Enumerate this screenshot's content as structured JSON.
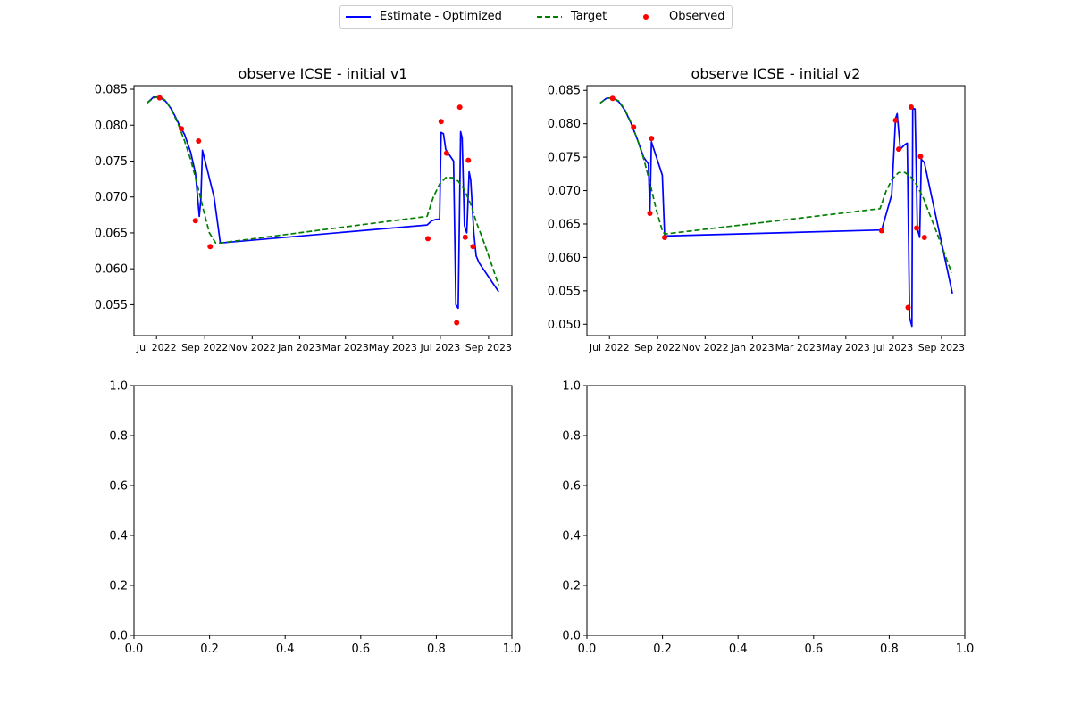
{
  "legend": {
    "items": [
      {
        "label": "Estimate - Optimized",
        "color": "#0000ff",
        "style": "solid"
      },
      {
        "label": "Target",
        "color": "#008000",
        "style": "dashed"
      },
      {
        "label": "Observed",
        "color": "#ff0000",
        "style": "marker"
      }
    ]
  },
  "chart_data": [
    {
      "type": "line",
      "title": "observe ICSE - initial v1",
      "xlabel": "",
      "ylabel": "",
      "x_axis": "date",
      "xlim": [
        "2022-06-02",
        "2023-10-01"
      ],
      "ylim": [
        0.0507,
        0.0855
      ],
      "x_ticks": [
        {
          "date": "2022-07-01",
          "label": "Jul 2022"
        },
        {
          "date": "2022-09-01",
          "label": "Sep 2022"
        },
        {
          "date": "2022-11-01",
          "label": "Nov 2022"
        },
        {
          "date": "2023-01-01",
          "label": "Jan 2023"
        },
        {
          "date": "2023-03-01",
          "label": "Mar 2023"
        },
        {
          "date": "2023-05-01",
          "label": "May 2023"
        },
        {
          "date": "2023-07-01",
          "label": "Jul 2023"
        },
        {
          "date": "2023-09-01",
          "label": "Sep 2023"
        }
      ],
      "y_ticks": [
        "0.055",
        "0.060",
        "0.065",
        "0.070",
        "0.075",
        "0.080",
        "0.085"
      ],
      "series": [
        {
          "name": "Estimate - Optimized",
          "color": "#0000ff",
          "style": "solid",
          "x": [
            "2022-06-19",
            "2022-06-27",
            "2022-07-05",
            "2022-07-13",
            "2022-07-21",
            "2022-07-29",
            "2022-08-06",
            "2022-08-14",
            "2022-08-20",
            "2022-08-25",
            "2022-08-27",
            "2022-08-29",
            "2022-09-13",
            "2022-09-21",
            "2023-06-14",
            "2023-06-20",
            "2023-06-26",
            "2023-06-30",
            "2023-07-02",
            "2023-07-05",
            "2023-07-08",
            "2023-07-18",
            "2023-07-21",
            "2023-07-24",
            "2023-07-27",
            "2023-07-29",
            "2023-08-01",
            "2023-08-04",
            "2023-08-07",
            "2023-08-09",
            "2023-08-13",
            "2023-08-16",
            "2023-08-20",
            "2023-09-14"
          ],
          "y": [
            0.0831,
            0.0839,
            0.0839,
            0.0833,
            0.0821,
            0.0803,
            0.0787,
            0.0762,
            0.0733,
            0.0673,
            0.0698,
            0.0765,
            0.07,
            0.0636,
            0.0661,
            0.0667,
            0.0669,
            0.0669,
            0.079,
            0.0788,
            0.0766,
            0.075,
            0.055,
            0.0545,
            0.0791,
            0.0782,
            0.066,
            0.065,
            0.0735,
            0.0724,
            0.065,
            0.0618,
            0.0608,
            0.0568
          ]
        },
        {
          "name": "Target",
          "color": "#008000",
          "style": "dashed",
          "x": [
            "2022-06-19",
            "2022-06-27",
            "2022-07-05",
            "2022-07-13",
            "2022-07-21",
            "2022-07-29",
            "2022-08-06",
            "2022-08-14",
            "2022-08-22",
            "2022-08-30",
            "2022-09-07",
            "2022-09-15",
            "2022-09-21",
            "2023-06-14",
            "2023-06-22",
            "2023-06-30",
            "2023-07-08",
            "2023-07-16",
            "2023-07-24",
            "2023-08-01",
            "2023-08-09",
            "2023-08-17",
            "2023-08-25",
            "2023-09-02",
            "2023-09-14"
          ],
          "y": [
            0.0831,
            0.0838,
            0.084,
            0.0834,
            0.082,
            0.0801,
            0.0778,
            0.0752,
            0.0719,
            0.0683,
            0.065,
            0.0636,
            0.0636,
            0.0673,
            0.07,
            0.0718,
            0.0727,
            0.0727,
            0.0722,
            0.071,
            0.069,
            0.0663,
            0.064,
            0.0615,
            0.0577
          ]
        },
        {
          "name": "Observed",
          "color": "#ff0000",
          "style": "marker",
          "x": [
            "2022-07-05",
            "2022-08-02",
            "2022-08-20",
            "2022-08-24",
            "2022-09-08",
            "2023-06-15",
            "2023-07-02",
            "2023-07-09",
            "2023-07-22",
            "2023-07-26",
            "2023-08-02",
            "2023-08-06",
            "2023-08-12"
          ],
          "y": [
            0.0838,
            0.0795,
            0.0667,
            0.0778,
            0.0631,
            0.0642,
            0.0805,
            0.0761,
            0.0525,
            0.0825,
            0.0644,
            0.0751,
            0.0631
          ]
        }
      ]
    },
    {
      "type": "line",
      "title": "observe ICSE - initial v2",
      "xlabel": "",
      "ylabel": "",
      "x_axis": "date",
      "xlim": [
        "2022-06-02",
        "2023-10-01"
      ],
      "ylim": [
        0.0483,
        0.0857
      ],
      "x_ticks": [
        {
          "date": "2022-07-01",
          "label": "Jul 2022"
        },
        {
          "date": "2022-09-01",
          "label": "Sep 2022"
        },
        {
          "date": "2022-11-01",
          "label": "Nov 2022"
        },
        {
          "date": "2023-01-01",
          "label": "Jan 2023"
        },
        {
          "date": "2023-03-01",
          "label": "Mar 2023"
        },
        {
          "date": "2023-05-01",
          "label": "May 2023"
        },
        {
          "date": "2023-07-01",
          "label": "Jul 2023"
        },
        {
          "date": "2023-09-01",
          "label": "Sep 2023"
        }
      ],
      "y_ticks": [
        "0.050",
        "0.055",
        "0.060",
        "0.065",
        "0.070",
        "0.075",
        "0.080",
        "0.085"
      ],
      "series": [
        {
          "name": "Estimate - Optimized",
          "color": "#0000ff",
          "style": "solid",
          "x": [
            "2022-06-19",
            "2022-06-27",
            "2022-07-05",
            "2022-07-13",
            "2022-07-21",
            "2022-07-29",
            "2022-08-06",
            "2022-08-14",
            "2022-08-20",
            "2022-08-22",
            "2022-08-24",
            "2022-09-07",
            "2022-09-10",
            "2023-06-16",
            "2023-06-29",
            "2023-07-04",
            "2023-07-06",
            "2023-07-10",
            "2023-07-16",
            "2023-07-19",
            "2023-07-22",
            "2023-07-25",
            "2023-07-26",
            "2023-07-29",
            "2023-08-01",
            "2023-08-04",
            "2023-08-06",
            "2023-08-10",
            "2023-09-15"
          ],
          "y": [
            0.0831,
            0.0838,
            0.0839,
            0.0833,
            0.082,
            0.08,
            0.0776,
            0.075,
            0.074,
            0.0668,
            0.0773,
            0.0723,
            0.0632,
            0.0641,
            0.0694,
            0.0808,
            0.0815,
            0.0762,
            0.0769,
            0.0771,
            0.051,
            0.0497,
            0.0823,
            0.0822,
            0.0643,
            0.063,
            0.0747,
            0.0742,
            0.0546
          ]
        },
        {
          "name": "Target",
          "color": "#008000",
          "style": "dashed",
          "x": [
            "2022-06-19",
            "2022-06-27",
            "2022-07-05",
            "2022-07-13",
            "2022-07-21",
            "2022-07-29",
            "2022-08-06",
            "2022-08-14",
            "2022-08-22",
            "2022-08-30",
            "2022-09-07",
            "2022-09-10",
            "2023-06-14",
            "2023-06-22",
            "2023-06-30",
            "2023-07-08",
            "2023-07-16",
            "2023-07-24",
            "2023-08-01",
            "2023-08-09",
            "2023-08-17",
            "2023-08-25",
            "2023-09-02",
            "2023-09-14"
          ],
          "y": [
            0.0831,
            0.0838,
            0.0839,
            0.0834,
            0.0821,
            0.0801,
            0.0776,
            0.0748,
            0.0712,
            0.0672,
            0.064,
            0.0635,
            0.0673,
            0.07,
            0.0718,
            0.0727,
            0.0727,
            0.072,
            0.0707,
            0.0688,
            0.0664,
            0.064,
            0.0615,
            0.0577
          ]
        },
        {
          "name": "Observed",
          "color": "#ff0000",
          "style": "marker",
          "x": [
            "2022-07-05",
            "2022-08-01",
            "2022-08-22",
            "2022-08-24",
            "2022-09-10",
            "2023-06-16",
            "2023-07-04",
            "2023-07-08",
            "2023-07-20",
            "2023-07-24",
            "2023-07-31",
            "2023-08-05",
            "2023-08-10"
          ],
          "y": [
            0.0838,
            0.0795,
            0.0666,
            0.0778,
            0.063,
            0.064,
            0.0805,
            0.0762,
            0.0525,
            0.0825,
            0.0644,
            0.0751,
            0.063
          ]
        }
      ]
    },
    {
      "type": "line",
      "title": "",
      "xlim": [
        0.0,
        1.0
      ],
      "ylim": [
        0.0,
        1.0
      ],
      "x_ticks": [
        "0.0",
        "0.2",
        "0.4",
        "0.6",
        "0.8",
        "1.0"
      ],
      "y_ticks": [
        "0.0",
        "0.2",
        "0.4",
        "0.6",
        "0.8",
        "1.0"
      ],
      "series": []
    },
    {
      "type": "line",
      "title": "",
      "xlim": [
        0.0,
        1.0
      ],
      "ylim": [
        0.0,
        1.0
      ],
      "x_ticks": [
        "0.0",
        "0.2",
        "0.4",
        "0.6",
        "0.8",
        "1.0"
      ],
      "y_ticks": [
        "0.0",
        "0.2",
        "0.4",
        "0.6",
        "0.8",
        "1.0"
      ],
      "series": []
    }
  ]
}
